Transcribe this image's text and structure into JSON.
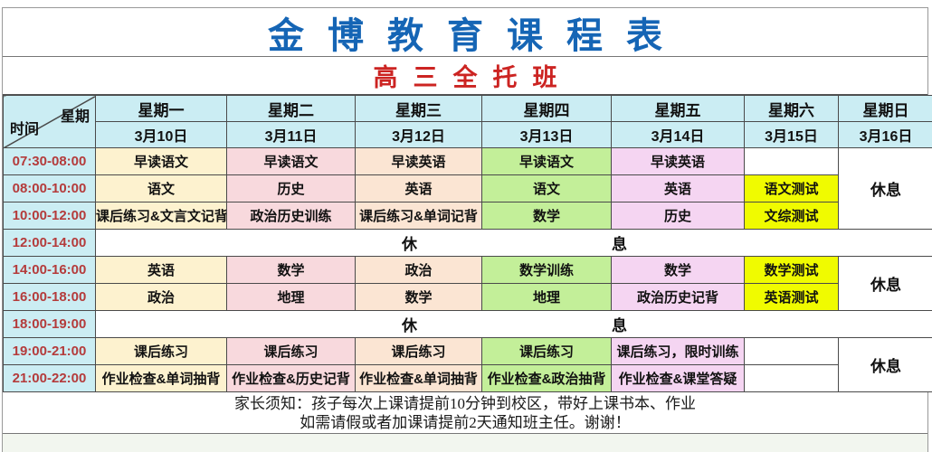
{
  "title": "金博教育课程表",
  "subtitle": "高三全托班",
  "schedule": {
    "corner": {
      "time_label": "时间",
      "week_label": "星期"
    },
    "day_headers": [
      {
        "day": "星期一",
        "date": "3月10日"
      },
      {
        "day": "星期二",
        "date": "3月11日"
      },
      {
        "day": "星期三",
        "date": "3月12日"
      },
      {
        "day": "星期四",
        "date": "3月13日"
      },
      {
        "day": "星期五",
        "date": "3月14日"
      },
      {
        "day": "星期六",
        "date": "3月15日"
      },
      {
        "day": "星期日",
        "date": "3月16日"
      }
    ],
    "rows": [
      {
        "time": "07:30-08:00",
        "cells": [
          {
            "t": "早读语文",
            "bg": "mon"
          },
          {
            "t": "早读语文",
            "bg": "tue"
          },
          {
            "t": "早读英语",
            "bg": "wed"
          },
          {
            "t": "早读语文",
            "bg": "thu"
          },
          {
            "t": "早读英语",
            "bg": "fri"
          },
          {
            "t": "",
            "bg": "white"
          },
          {
            "t": "休息",
            "bg": "white",
            "rowspan": 3,
            "rest": true
          }
        ]
      },
      {
        "time": "08:00-10:00",
        "cells": [
          {
            "t": "语文",
            "bg": "mon"
          },
          {
            "t": "历史",
            "bg": "tue"
          },
          {
            "t": "英语",
            "bg": "wed"
          },
          {
            "t": "语文",
            "bg": "thu"
          },
          {
            "t": "英语",
            "bg": "fri"
          },
          {
            "t": "语文测试",
            "bg": "sat"
          }
        ]
      },
      {
        "time": "10:00-12:00",
        "cells": [
          {
            "t": "课后练习&文言文记背",
            "bg": "mon"
          },
          {
            "t": "政治历史训练",
            "bg": "tue"
          },
          {
            "t": "课后练习&单词记背",
            "bg": "wed"
          },
          {
            "t": "数学",
            "bg": "thu"
          },
          {
            "t": "历史",
            "bg": "fri"
          },
          {
            "t": "文综测试",
            "bg": "sat"
          }
        ]
      },
      {
        "time": "12:00-14:00",
        "cells": [
          {
            "t": "休息",
            "bg": "white",
            "colspan": 7,
            "spread": true
          }
        ]
      },
      {
        "time": "14:00-16:00",
        "cells": [
          {
            "t": "英语",
            "bg": "mon"
          },
          {
            "t": "数学",
            "bg": "tue"
          },
          {
            "t": "政治",
            "bg": "wed"
          },
          {
            "t": "数学训练",
            "bg": "thu"
          },
          {
            "t": "数学",
            "bg": "fri"
          },
          {
            "t": "数学测试",
            "bg": "sat"
          },
          {
            "t": "休息",
            "bg": "white",
            "rowspan": 2,
            "rest": true
          }
        ]
      },
      {
        "time": "16:00-18:00",
        "cells": [
          {
            "t": "政治",
            "bg": "mon"
          },
          {
            "t": "地理",
            "bg": "tue"
          },
          {
            "t": "数学",
            "bg": "wed"
          },
          {
            "t": "地理",
            "bg": "thu"
          },
          {
            "t": "政治历史记背",
            "bg": "fri"
          },
          {
            "t": "英语测试",
            "bg": "sat"
          }
        ]
      },
      {
        "time": "18:00-19:00",
        "cells": [
          {
            "t": "休息",
            "bg": "white",
            "colspan": 7,
            "spread": true
          }
        ]
      },
      {
        "time": "19:00-21:00",
        "cells": [
          {
            "t": "课后练习",
            "bg": "mon"
          },
          {
            "t": "课后练习",
            "bg": "tue"
          },
          {
            "t": "课后练习",
            "bg": "wed"
          },
          {
            "t": "课后练习",
            "bg": "thu"
          },
          {
            "t": "课后练习，限时训练",
            "bg": "fri"
          },
          {
            "t": "",
            "bg": "white"
          },
          {
            "t": "休息",
            "bg": "white",
            "rowspan": 2,
            "rest": true
          }
        ]
      },
      {
        "time": "21:00-22:00",
        "cells": [
          {
            "t": "作业检查&单词抽背",
            "bg": "mon"
          },
          {
            "t": "作业检查&历史记背",
            "bg": "tue"
          },
          {
            "t": "作业检查&单词抽背",
            "bg": "wed"
          },
          {
            "t": "作业检查&政治抽背",
            "bg": "thu"
          },
          {
            "t": "作业检查&课堂答疑",
            "bg": "fri"
          },
          {
            "t": "",
            "bg": "white"
          }
        ]
      }
    ]
  },
  "footer": {
    "line1": "家长须知：孩子每次上课请提前10分钟到校区，带好上课书本、作业",
    "line2": "如需请假或者加课请提前2天通知班主任。谢谢！"
  },
  "colors": {
    "title_blue": "#1565b5",
    "subtitle_red": "#cc2422",
    "header_cyan": "#cbedf3",
    "monday": "#fdf2cf",
    "tuesday": "#f8d9dd",
    "wednesday": "#fbe5d3",
    "thursday": "#c3ef99",
    "friday": "#f5d5f2",
    "saturday_highlight": "#f0fb00",
    "time_text": "#b43b3b",
    "border": "#4a4a4a"
  }
}
